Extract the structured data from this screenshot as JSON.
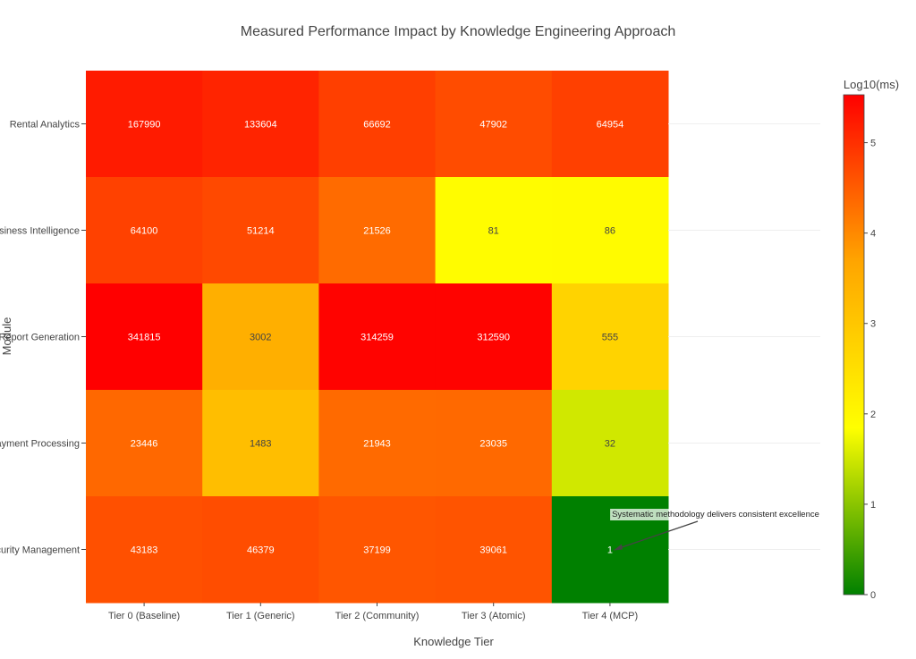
{
  "chart_data": {
    "type": "heatmap",
    "title": "Measured Performance Impact by Knowledge Engineering Approach",
    "xlabel": "Knowledge Tier",
    "ylabel": "Module",
    "x_categories": [
      "Tier 0 (Baseline)",
      "Tier 1 (Generic)",
      "Tier 2 (Community)",
      "Tier 3 (Atomic)",
      "Tier 4 (MCP)"
    ],
    "y_categories": [
      "Rental Analytics",
      "Business Intelligence",
      "Report Generation",
      "Payment Processing",
      "Security Management"
    ],
    "values": [
      [
        167990,
        133604,
        66692,
        47902,
        64954
      ],
      [
        64100,
        51214,
        21526,
        81,
        86
      ],
      [
        341815,
        3002,
        314259,
        312590,
        555
      ],
      [
        23446,
        1483,
        21943,
        23035,
        32
      ],
      [
        43183,
        46379,
        37199,
        39061,
        1
      ]
    ],
    "color_scale": {
      "title": "Log10(ms)",
      "range": [
        0,
        5.53
      ],
      "ticks": [
        0,
        1,
        2,
        3,
        4,
        5
      ],
      "colors": [
        "#008000",
        "#ffff00",
        "#ffa500",
        "#ff0000"
      ]
    },
    "annotation": {
      "text": "Systematic methodology delivers consistent excellence",
      "target": {
        "x": "Tier 4 (MCP)",
        "y": "Security Management"
      }
    }
  }
}
